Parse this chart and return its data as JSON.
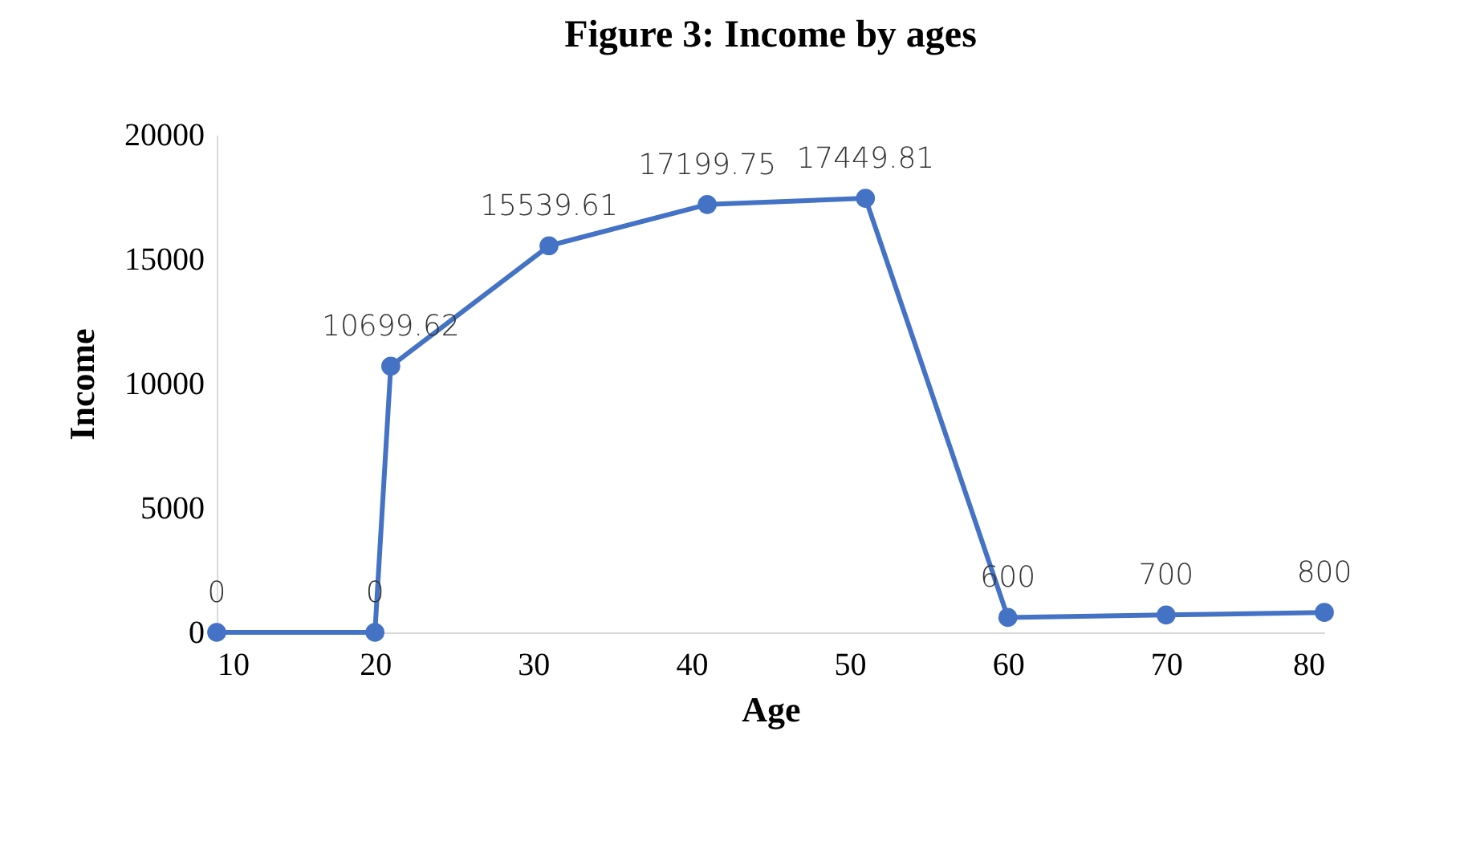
{
  "chart_data": {
    "type": "line",
    "title": "Figure 3: Income by ages",
    "xlabel": "Age",
    "ylabel": "Income",
    "x": [
      10,
      20,
      21,
      31,
      41,
      51,
      60,
      70,
      80
    ],
    "series": [
      {
        "color": "#4472c4",
        "values": [
          0,
          0,
          10699.62,
          15539.61,
          17199.75,
          17449.81,
          600,
          700,
          800
        ]
      }
    ],
    "xlim": [
      10,
      80
    ],
    "xticks": [
      10,
      20,
      30,
      40,
      50,
      60,
      70,
      80
    ],
    "ylim": [
      0,
      20000
    ],
    "yticks": [
      0,
      5000,
      10000,
      15000,
      20000
    ],
    "data_labels": true,
    "grid": false,
    "legend": false,
    "marker": "circle",
    "line_style": "solid"
  }
}
